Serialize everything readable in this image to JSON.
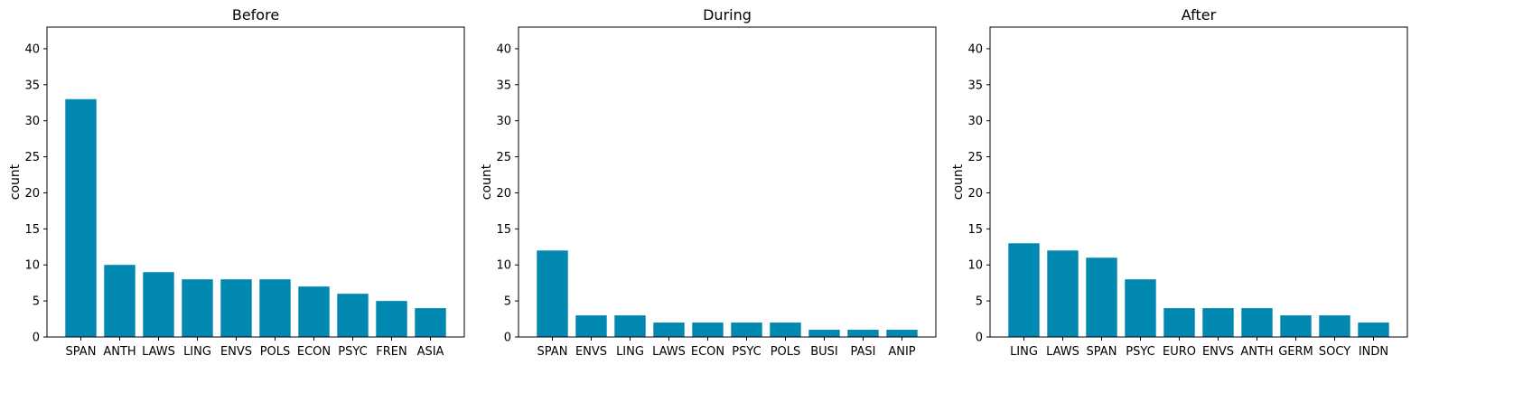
{
  "chart_data": [
    {
      "type": "bar",
      "title": "Before",
      "xlabel": "",
      "ylabel": "count",
      "ylim": [
        0,
        43
      ],
      "yticks": [
        0,
        5,
        10,
        15,
        20,
        25,
        30,
        35,
        40
      ],
      "grid": false,
      "color": "#0088b0",
      "categories": [
        "SPAN",
        "ANTH",
        "LAWS",
        "LING",
        "ENVS",
        "POLS",
        "ECON",
        "PSYC",
        "FREN",
        "ASIA"
      ],
      "values": [
        33,
        10,
        9,
        8,
        8,
        8,
        7,
        6,
        5,
        4
      ]
    },
    {
      "type": "bar",
      "title": "During",
      "xlabel": "",
      "ylabel": "count",
      "ylim": [
        0,
        43
      ],
      "yticks": [
        0,
        5,
        10,
        15,
        20,
        25,
        30,
        35,
        40
      ],
      "grid": false,
      "color": "#0088b0",
      "categories": [
        "SPAN",
        "ENVS",
        "LING",
        "LAWS",
        "ECON",
        "PSYC",
        "POLS",
        "BUSI",
        "PASI",
        "ANIP"
      ],
      "values": [
        12,
        3,
        3,
        2,
        2,
        2,
        2,
        1,
        1,
        1
      ]
    },
    {
      "type": "bar",
      "title": "After",
      "xlabel": "",
      "ylabel": "count",
      "ylim": [
        0,
        43
      ],
      "yticks": [
        0,
        5,
        10,
        15,
        20,
        25,
        30,
        35,
        40
      ],
      "grid": false,
      "color": "#0088b0",
      "categories": [
        "LING",
        "LAWS",
        "SPAN",
        "PSYC",
        "EURO",
        "ENVS",
        "ANTH",
        "GERM",
        "SOCY",
        "INDN"
      ],
      "values": [
        13,
        12,
        11,
        8,
        4,
        4,
        4,
        3,
        3,
        2
      ]
    }
  ]
}
